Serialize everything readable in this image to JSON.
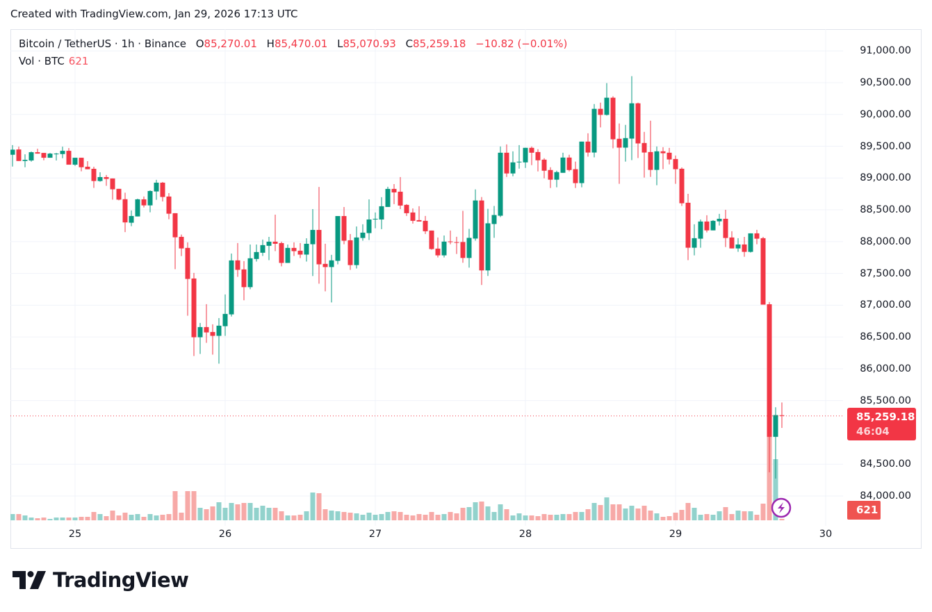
{
  "header": {
    "created": "Created with TradingView.com, Jan 29, 2026 17:13 UTC"
  },
  "legend": {
    "symbol": "Bitcoin / TetherUS · 1h · Binance",
    "o_label": "O",
    "o_value": "85,270.01",
    "h_label": "H",
    "h_value": "85,470.01",
    "l_label": "L",
    "l_value": "85,070.93",
    "c_label": "C",
    "c_value": "85,259.18",
    "change": "−10.82 (−0.01%)",
    "vol_label": "Vol · BTC",
    "vol_value": "621"
  },
  "price_tag": {
    "price": "85,259.18",
    "countdown": "46:04"
  },
  "volume_tag": {
    "value": "621"
  },
  "logo": {
    "text": "TradingView"
  },
  "colors": {
    "up": "#089981",
    "down": "#f23645",
    "vol_up": "#92d2cc",
    "vol_down": "#f7a9a7",
    "accent_icon": "#9c27b0"
  },
  "icons": {
    "alert": "lightning-icon"
  },
  "chart_data": {
    "type": "candlestick",
    "symbol": "BTCUSDT",
    "interval": "1h",
    "start": "2026-01-24 14:00 UTC",
    "ylim": [
      83700,
      91300
    ],
    "y_ticks": [
      "91,000.00",
      "90,500.00",
      "90,000.00",
      "89,500.00",
      "89,000.00",
      "88,500.00",
      "88,000.00",
      "87,500.00",
      "87,000.00",
      "86,500.00",
      "86,000.00",
      "85,500.00",
      "84,500.00",
      "84,000.00"
    ],
    "y_tick_values": [
      91000,
      90500,
      90000,
      89500,
      89000,
      88500,
      88000,
      87500,
      87000,
      86500,
      86000,
      85500,
      84500,
      84000
    ],
    "x_ticks": [
      {
        "label": "25",
        "index": 10
      },
      {
        "label": "26",
        "index": 34
      },
      {
        "label": "27",
        "index": 58
      },
      {
        "label": "28",
        "index": 82
      },
      {
        "label": "29",
        "index": 106
      },
      {
        "label": "30",
        "index": 130
      }
    ],
    "last_price": 85259.18,
    "grid": true,
    "columns": [
      "open",
      "high",
      "low",
      "close",
      "volume"
    ],
    "candles": [
      [
        89366,
        89518,
        89181,
        89446,
        2700
      ],
      [
        89449,
        89493,
        89268,
        89268,
        2700
      ],
      [
        89268,
        89373,
        89170,
        89286,
        2100
      ],
      [
        89276,
        89417,
        89257,
        89406,
        1200
      ],
      [
        89406,
        89460,
        89384,
        89384,
        900
      ],
      [
        89395,
        89395,
        89279,
        89319,
        1200
      ],
      [
        89319,
        89395,
        89319,
        89384,
        600
      ],
      [
        89380,
        89395,
        89276,
        89384,
        1200
      ],
      [
        89377,
        89493,
        89312,
        89428,
        1200
      ],
      [
        89428,
        89471,
        89210,
        89210,
        1200
      ],
      [
        89210,
        89319,
        89192,
        89319,
        1200
      ],
      [
        89319,
        89319,
        89105,
        89170,
        1500
      ],
      [
        89178,
        89265,
        89138,
        89138,
        1500
      ],
      [
        89145,
        89178,
        88845,
        88953,
        3600
      ],
      [
        88953,
        89091,
        88942,
        89015,
        2700
      ],
      [
        89015,
        89048,
        88877,
        88986,
        1800
      ],
      [
        88993,
        88993,
        88660,
        88823,
        4200
      ],
      [
        88830,
        88830,
        88649,
        88660,
        2100
      ],
      [
        88667,
        88769,
        88150,
        88302,
        3300
      ],
      [
        88297,
        88490,
        88243,
        88403,
        2400
      ],
      [
        88396,
        88676,
        88396,
        88665,
        2700
      ],
      [
        88665,
        88709,
        88538,
        88570,
        1500
      ],
      [
        88570,
        88807,
        88461,
        88796,
        2700
      ],
      [
        88789,
        88971,
        88658,
        88927,
        2100
      ],
      [
        88927,
        88938,
        88632,
        88702,
        2400
      ],
      [
        88709,
        88763,
        88352,
        88439,
        2700
      ],
      [
        88447,
        88447,
        87566,
        88068,
        12600
      ],
      [
        88075,
        88112,
        87773,
        87893,
        3300
      ],
      [
        87901,
        87988,
        86834,
        87413,
        12600
      ],
      [
        87420,
        87508,
        86201,
        86496,
        12600
      ],
      [
        86496,
        86721,
        86234,
        86656,
        5400
      ],
      [
        86656,
        87016,
        86408,
        86572,
        4800
      ],
      [
        86579,
        86699,
        86223,
        86518,
        6000
      ],
      [
        86518,
        86798,
        86081,
        86678,
        7800
      ],
      [
        86670,
        87169,
        86518,
        86863,
        5400
      ],
      [
        86856,
        87813,
        86823,
        87704,
        7500
      ],
      [
        87705,
        87977,
        87447,
        87556,
        6900
      ],
      [
        87563,
        87694,
        87077,
        87284,
        7500
      ],
      [
        87284,
        87955,
        87251,
        87738,
        7500
      ],
      [
        87727,
        87955,
        87687,
        87836,
        5400
      ],
      [
        87825,
        88032,
        87774,
        87945,
        6300
      ],
      [
        87934,
        88075,
        87709,
        87999,
        5400
      ],
      [
        87999,
        88424,
        87850,
        87966,
        5400
      ],
      [
        87977,
        87999,
        87611,
        87665,
        3900
      ],
      [
        87665,
        87955,
        87665,
        87901,
        2100
      ],
      [
        87901,
        87988,
        87774,
        87850,
        2100
      ],
      [
        87857,
        87977,
        87741,
        87796,
        2400
      ],
      [
        87796,
        88053,
        87687,
        87966,
        3900
      ],
      [
        87959,
        88511,
        87458,
        88184,
        12000
      ],
      [
        88184,
        88859,
        87338,
        87643,
        11700
      ],
      [
        87650,
        87966,
        87219,
        87600,
        4800
      ],
      [
        87600,
        87792,
        87044,
        87705,
        4200
      ],
      [
        87698,
        88402,
        87643,
        88402,
        3900
      ],
      [
        88402,
        88544,
        87959,
        88014,
        3600
      ],
      [
        88021,
        88119,
        87555,
        87631,
        3300
      ],
      [
        87631,
        88239,
        87577,
        88065,
        3000
      ],
      [
        88057,
        88272,
        88014,
        88141,
        2400
      ],
      [
        88134,
        88665,
        88025,
        88348,
        3300
      ],
      [
        88348,
        88458,
        88210,
        88359,
        2400
      ],
      [
        88348,
        88698,
        88196,
        88556,
        2700
      ],
      [
        88545,
        88862,
        88545,
        88829,
        3600
      ],
      [
        88829,
        88905,
        88589,
        88774,
        3900
      ],
      [
        88785,
        89015,
        88512,
        88567,
        3600
      ],
      [
        88578,
        88589,
        88403,
        88447,
        2400
      ],
      [
        88458,
        88523,
        88283,
        88327,
        2100
      ],
      [
        88338,
        88556,
        88316,
        88316,
        2700
      ],
      [
        88327,
        88403,
        88119,
        88163,
        2400
      ],
      [
        88174,
        88174,
        87872,
        87883,
        3600
      ],
      [
        87890,
        88065,
        87751,
        87784,
        2400
      ],
      [
        87784,
        88097,
        87751,
        88000,
        2700
      ],
      [
        88003,
        88174,
        87959,
        87992,
        3600
      ],
      [
        87992,
        88076,
        87806,
        87981,
        3000
      ],
      [
        87994,
        88484,
        87667,
        87743,
        5400
      ],
      [
        87743,
        88200,
        87591,
        88059,
        5700
      ],
      [
        88048,
        88821,
        88015,
        88647,
        7800
      ],
      [
        88647,
        88701,
        87318,
        87547,
        8100
      ],
      [
        87547,
        88516,
        87460,
        88288,
        6000
      ],
      [
        88277,
        88560,
        88059,
        88418,
        3600
      ],
      [
        88407,
        89496,
        88386,
        89398,
        6900
      ],
      [
        89398,
        89529,
        89017,
        89072,
        4800
      ],
      [
        89072,
        89420,
        89028,
        89246,
        2100
      ],
      [
        89246,
        89518,
        89148,
        89257,
        3000
      ],
      [
        89246,
        89475,
        89159,
        89475,
        2100
      ],
      [
        89475,
        89496,
        89202,
        89398,
        2100
      ],
      [
        89409,
        89453,
        89104,
        89279,
        1800
      ],
      [
        89289,
        89311,
        88995,
        89115,
        2700
      ],
      [
        89126,
        89170,
        88843,
        88974,
        2400
      ],
      [
        88974,
        89115,
        88854,
        89093,
        2400
      ],
      [
        89082,
        89398,
        89082,
        89322,
        2700
      ],
      [
        89322,
        89366,
        89104,
        89126,
        2700
      ],
      [
        89139,
        89259,
        88843,
        88920,
        3600
      ],
      [
        88920,
        89573,
        88854,
        89573,
        3600
      ],
      [
        89573,
        89704,
        89336,
        89401,
        4800
      ],
      [
        89401,
        90164,
        89325,
        90088,
        7500
      ],
      [
        90088,
        90186,
        89796,
        89993,
        6600
      ],
      [
        89993,
        90493,
        89982,
        90263,
        9900
      ],
      [
        90263,
        90285,
        89467,
        89609,
        6900
      ],
      [
        89617,
        89858,
        88909,
        89478,
        6900
      ],
      [
        89478,
        89836,
        89259,
        89628,
        5100
      ],
      [
        89620,
        90602,
        89281,
        90175,
        6300
      ],
      [
        90175,
        90186,
        89314,
        89544,
        5100
      ],
      [
        89551,
        89726,
        89007,
        89401,
        6300
      ],
      [
        89409,
        89901,
        89018,
        89128,
        4200
      ],
      [
        89128,
        89496,
        88887,
        89420,
        3000
      ],
      [
        89420,
        89485,
        89139,
        89390,
        1500
      ],
      [
        89398,
        89474,
        89215,
        89292,
        1800
      ],
      [
        89299,
        89354,
        88909,
        89139,
        3300
      ],
      [
        89146,
        89167,
        88560,
        88603,
        4500
      ],
      [
        88611,
        88752,
        87708,
        87904,
        7500
      ],
      [
        87904,
        88272,
        87784,
        88054,
        5400
      ],
      [
        88046,
        88348,
        87904,
        88316,
        2400
      ],
      [
        88316,
        88414,
        88145,
        88177,
        2700
      ],
      [
        88177,
        88338,
        88177,
        88327,
        2400
      ],
      [
        88319,
        88436,
        88254,
        88359,
        3900
      ],
      [
        88359,
        88501,
        87915,
        88057,
        5700
      ],
      [
        88065,
        88163,
        87893,
        87893,
        2700
      ],
      [
        87893,
        88054,
        87839,
        87955,
        4200
      ],
      [
        87955,
        88075,
        87762,
        87839,
        3900
      ],
      [
        87839,
        88130,
        87828,
        88130,
        3900
      ],
      [
        88130,
        88185,
        87959,
        88046,
        2400
      ],
      [
        88054,
        88075,
        87009,
        87009,
        7200
      ],
      [
        87015,
        87051,
        84372,
        84930,
        53100
      ],
      [
        84930,
        85396,
        84274,
        85272,
        26400
      ],
      [
        85270.01,
        85470.01,
        85070.93,
        85259.18,
        621
      ]
    ]
  }
}
